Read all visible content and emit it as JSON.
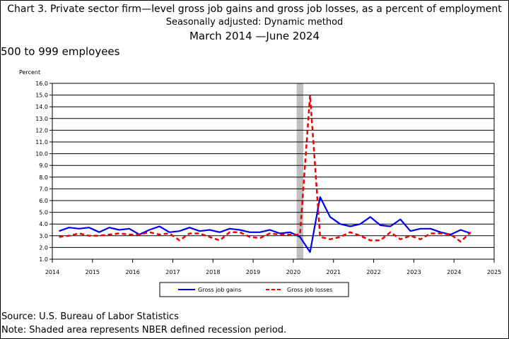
{
  "header": {
    "title_line1": "Chart 3. Private sector firm—level gross job gains and gross job losses, as a percent of employment",
    "title_line2": "Seasonally adjusted: Dynamic method",
    "title_line3": "March 2014 —June 2024",
    "subtitle": "500 to 999 employees"
  },
  "footer": {
    "source": "Source: U.S. Bureau of Labor Statistics",
    "note": "Note: Shaded area represents NBER defined recession period."
  },
  "colors": {
    "gains": "#0000ee",
    "losses": "#ee0000",
    "recession": "#c0c0c0"
  },
  "chart_data": {
    "type": "line",
    "ylabel": "Percent",
    "ylim": [
      1.0,
      16.0
    ],
    "yticks": [
      "1.0",
      "2.0",
      "3.0",
      "4.0",
      "5.0",
      "6.0",
      "7.0",
      "8.0",
      "9.0",
      "10.0",
      "11.0",
      "12.0",
      "13.0",
      "14.0",
      "15.0",
      "16.0"
    ],
    "xlim": [
      2014,
      2025
    ],
    "xticks": [
      "2014",
      "2015",
      "2016",
      "2017",
      "2018",
      "2019",
      "2020",
      "2021",
      "2022",
      "2023",
      "2024",
      "2025"
    ],
    "grid": "horizontal",
    "legend_position": "bottom",
    "recession_shading": [
      "2020-02",
      "2020-04"
    ],
    "x": [
      "2014-03",
      "2014-06",
      "2014-09",
      "2014-12",
      "2015-03",
      "2015-06",
      "2015-09",
      "2015-12",
      "2016-03",
      "2016-06",
      "2016-09",
      "2016-12",
      "2017-03",
      "2017-06",
      "2017-09",
      "2017-12",
      "2018-03",
      "2018-06",
      "2018-09",
      "2018-12",
      "2019-03",
      "2019-06",
      "2019-09",
      "2019-12",
      "2020-03",
      "2020-06",
      "2020-09",
      "2020-12",
      "2021-03",
      "2021-06",
      "2021-09",
      "2021-12",
      "2022-03",
      "2022-06",
      "2022-09",
      "2022-12",
      "2023-03",
      "2023-06",
      "2023-09",
      "2023-12",
      "2024-03",
      "2024-06"
    ],
    "series": [
      {
        "name": "Gross job gains",
        "style": "solid",
        "values": [
          3.4,
          3.7,
          3.6,
          3.7,
          3.3,
          3.7,
          3.5,
          3.6,
          3.1,
          3.5,
          3.8,
          3.3,
          3.4,
          3.7,
          3.4,
          3.5,
          3.3,
          3.6,
          3.5,
          3.3,
          3.3,
          3.5,
          3.2,
          3.3,
          2.9,
          1.6,
          6.3,
          4.6,
          4.0,
          3.8,
          4.0,
          4.6,
          3.9,
          3.8,
          4.4,
          3.4,
          3.6,
          3.6,
          3.3,
          3.1,
          3.5,
          3.2
        ]
      },
      {
        "name": "Gross job losses",
        "style": "dashed",
        "values": [
          2.9,
          3.0,
          3.2,
          3.0,
          3.0,
          3.1,
          3.2,
          3.1,
          3.1,
          3.3,
          3.1,
          3.2,
          2.6,
          3.2,
          3.2,
          2.9,
          2.6,
          3.3,
          3.3,
          2.9,
          2.8,
          3.2,
          3.1,
          3.1,
          3.1,
          15.0,
          2.9,
          2.7,
          2.9,
          3.3,
          3.0,
          2.6,
          2.6,
          3.3,
          2.7,
          3.0,
          2.7,
          3.2,
          3.2,
          3.1,
          2.5,
          3.3
        ]
      }
    ]
  }
}
